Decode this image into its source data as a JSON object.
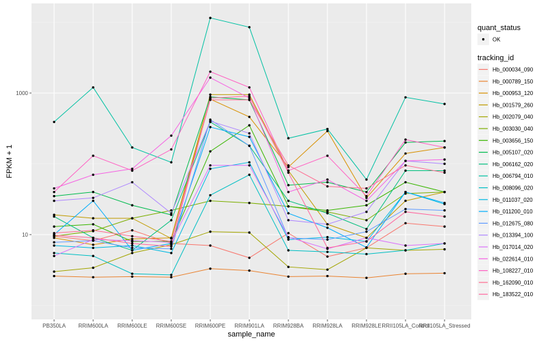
{
  "chart_data": {
    "type": "line",
    "title": "",
    "xlabel": "sample_name",
    "ylabel": "FPKM + 1",
    "yscale": "log10",
    "ylim": [
      1.8,
      12000
    ],
    "yticks": [
      10,
      1000
    ],
    "ytick_labels": [
      "10",
      "1000"
    ],
    "y_minor_gridlines": [
      1,
      100,
      10000
    ],
    "grid": true,
    "legend_position": "right",
    "categories": [
      "PB350LA",
      "RRIM600LA",
      "RRIM600LE",
      "RRIM600SE",
      "RRIM600PE",
      "RRIM901LA",
      "RRIM928BA",
      "RRIM928LA",
      "RRIM928LE",
      "RRII105LA_Control",
      "RRII105LA_Stressed"
    ],
    "legend_shape": {
      "title": "quant_status",
      "entries": [
        {
          "label": "OK",
          "marker": "point",
          "color": "#000000"
        }
      ]
    },
    "legend_color_title": "tracking_id",
    "series": [
      {
        "name": "Hb_000034_090",
        "color": "#F8766D",
        "values": [
          9.5,
          8.2,
          11.5,
          7.5,
          7.0,
          4.7,
          10.5,
          4.9,
          6.5,
          14.5,
          13.0
        ]
      },
      {
        "name": "Hb_000789_150",
        "color": "#EA8331",
        "values": [
          2.6,
          2.5,
          2.55,
          2.5,
          3.3,
          3.1,
          2.55,
          2.6,
          2.45,
          2.8,
          2.85
        ]
      },
      {
        "name": "Hb_000953_120",
        "color": "#D89000",
        "values": [
          9.0,
          7.2,
          8.7,
          9.0,
          820,
          460,
          90,
          290,
          33,
          140,
          170
        ]
      },
      {
        "name": "Hb_001579_260",
        "color": "#C09B00",
        "values": [
          19,
          17,
          17,
          8.8,
          950,
          950,
          80,
          14,
          9.0,
          30,
          40
        ]
      },
      {
        "name": "Hb_002079_040",
        "color": "#A3A500",
        "values": [
          3.0,
          3.4,
          5.5,
          7.2,
          11,
          10.7,
          3.5,
          3.2,
          6.5,
          6.0,
          6.2
        ]
      },
      {
        "name": "Hb_003030_040",
        "color": "#7CAE00",
        "values": [
          9.5,
          11.2,
          17,
          22,
          30,
          28,
          25,
          21,
          16,
          38,
          40
        ]
      },
      {
        "name": "Hb_003656_150",
        "color": "#39B600",
        "values": [
          13,
          14,
          8.0,
          8.0,
          150,
          350,
          25,
          22,
          26,
          55,
          40
        ]
      },
      {
        "name": "Hb_005107_020",
        "color": "#00BB4E",
        "values": [
          35,
          40,
          26,
          19,
          880,
          800,
          50,
          55,
          40,
          200,
          210
        ]
      },
      {
        "name": "Hb_006162_020",
        "color": "#00BF7D",
        "values": [
          18,
          9.0,
          6.0,
          16,
          390,
          180,
          30,
          20,
          12,
          80,
          80
        ]
      },
      {
        "name": "Hb_006794_010",
        "color": "#00C1A3",
        "values": [
          390,
          1200,
          170,
          105,
          11500,
          8500,
          230,
          310,
          60,
          870,
          700
        ]
      },
      {
        "name": "Hb_008096_020",
        "color": "#00BFC4",
        "values": [
          5.5,
          5.0,
          2.8,
          2.7,
          36,
          70,
          6.0,
          5.7,
          5.3,
          6.0,
          7.5
        ]
      },
      {
        "name": "Hb_011037_020",
        "color": "#00B9E3",
        "values": [
          7.0,
          6.5,
          7.0,
          5.5,
          85,
          105,
          8.5,
          9.2,
          8.0,
          40,
          27
        ]
      },
      {
        "name": "Hb_011200_010",
        "color": "#00ADFA",
        "values": [
          10,
          30,
          6.0,
          7.5,
          330,
          240,
          20,
          12.5,
          6.6,
          40,
          28
        ]
      },
      {
        "name": "Hb_012675_080",
        "color": "#619CFF",
        "values": [
          7.8,
          8.2,
          6.5,
          6.3,
          420,
          180,
          9.0,
          8.5,
          11,
          23,
          22
        ]
      },
      {
        "name": "Hb_013394_100",
        "color": "#AE87FF",
        "values": [
          30,
          33,
          55,
          20,
          400,
          270,
          16,
          14,
          21,
          110,
          100
        ]
      },
      {
        "name": "Hb_017014_020",
        "color": "#DB72FB",
        "values": [
          5.0,
          8.5,
          8.2,
          7.8,
          95,
          95,
          9.2,
          6.3,
          9.0,
          7.0,
          7.5
        ]
      },
      {
        "name": "Hb_022614_010",
        "color": "#F564E3",
        "values": [
          45,
          70,
          85,
          250,
          1650,
          850,
          40,
          60,
          30,
          110,
          115
        ]
      },
      {
        "name": "Hb_108227_010",
        "color": "#FF61C3",
        "values": [
          40,
          130,
          80,
          160,
          2000,
          1200,
          80,
          130,
          35,
          220,
          170
        ]
      },
      {
        "name": "Hb_162090_010",
        "color": "#FF6C91",
        "values": [
          10.5,
          11.5,
          9.5,
          8.0,
          800,
          800,
          95,
          48,
          45,
          95,
          75
        ]
      },
      {
        "name": "Hb_183522_010",
        "color": "#FF689F",
        "values": [
          9.8,
          9.0,
          7.5,
          6.8,
          850,
          900,
          75,
          6.5,
          8.0,
          21,
          18
        ]
      }
    ]
  }
}
